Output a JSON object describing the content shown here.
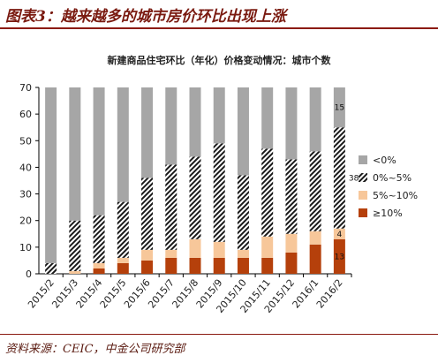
{
  "header": {
    "title": "图表3：越来越多的城市房价环比出现上涨"
  },
  "footer": {
    "source": "资料来源：CEIC，中金公司研究部"
  },
  "colors": {
    "neg": "#a6a6a6",
    "flat": "#1a1a1a",
    "mid": "#f7c79a",
    "high": "#b5400b",
    "rule": "#8b1a10"
  },
  "chart_data": {
    "type": "bar",
    "stacked": true,
    "title": "新建商品住宅环比（年化）价格变动情况：城市个数",
    "categories": [
      "2015/2",
      "2015/3",
      "2015/4",
      "2015/5",
      "2015/6",
      "2015/7",
      "2015/8",
      "2015/9",
      "2015/10",
      "2015/11",
      "2015/12",
      "2016/1",
      "2016/2"
    ],
    "ylim": [
      0,
      70
    ],
    "yticks": [
      0,
      10,
      20,
      30,
      40,
      50,
      60,
      70
    ],
    "legend_position": "right",
    "series": [
      {
        "name": "≥10%",
        "color_key": "high",
        "values": [
          0,
          0,
          2,
          4,
          5,
          6,
          6,
          6,
          6,
          6,
          8,
          11,
          13
        ]
      },
      {
        "name": "5%~10%",
        "color_key": "mid",
        "values": [
          0,
          1,
          2,
          2,
          4,
          3,
          7,
          6,
          3,
          8,
          7,
          5,
          4
        ]
      },
      {
        "name": "0%~5%",
        "color_key": "flat",
        "pattern": true,
        "values": [
          4,
          19,
          18,
          21,
          27,
          32,
          31,
          37,
          28,
          33,
          28,
          30,
          38
        ]
      },
      {
        "name": "<0%",
        "color_key": "neg",
        "values": [
          66,
          50,
          48,
          43,
          34,
          29,
          26,
          21,
          33,
          23,
          27,
          24,
          15
        ]
      }
    ],
    "legend_order": [
      "<0%",
      "0%~5%",
      "5%~10%",
      "≥10%"
    ],
    "data_labels": [
      {
        "category": "2016/2",
        "series": "<0%",
        "text": "15"
      },
      {
        "category": "2016/2",
        "series": "0%~5%",
        "text": "38"
      },
      {
        "category": "2016/2",
        "series": "5%~10%",
        "text": "4"
      },
      {
        "category": "2016/2",
        "series": "≥10%",
        "text": "13"
      }
    ]
  }
}
